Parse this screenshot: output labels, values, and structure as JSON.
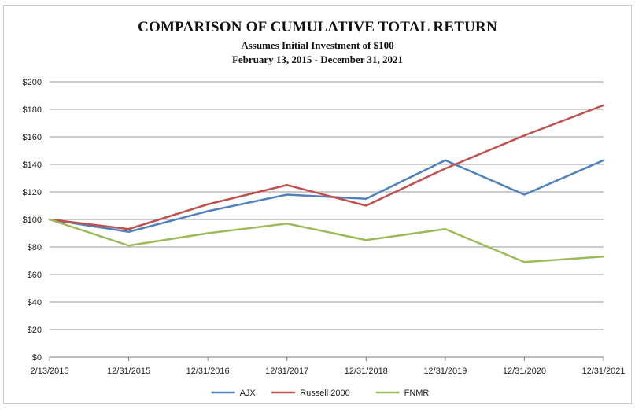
{
  "chart_data": {
    "type": "line",
    "title": "COMPARISON OF CUMULATIVE TOTAL RETURN",
    "subtitle": "Assumes Initial Investment of $100",
    "subtitle2": "February 13, 2015 - December 31, 2021",
    "categories": [
      "2/13/2015",
      "12/31/2015",
      "12/31/2016",
      "12/31/2017",
      "12/31/2018",
      "12/31/2019",
      "12/31/2020",
      "12/31/2021"
    ],
    "y_ticks": [
      "$0",
      "$20",
      "$40",
      "$60",
      "$80",
      "$100",
      "$120",
      "$140",
      "$160",
      "$180",
      "$200"
    ],
    "ylim": [
      0,
      200
    ],
    "grid": true,
    "legend_position": "bottom",
    "series": [
      {
        "name": "AJX",
        "color": "#4f81bd",
        "values": [
          100,
          91,
          106,
          118,
          115,
          143,
          118,
          143
        ]
      },
      {
        "name": "Russell 2000",
        "color": "#c0504d",
        "values": [
          100,
          93,
          111,
          125,
          110,
          137,
          161,
          183
        ]
      },
      {
        "name": "FNMR",
        "color": "#9bbb59",
        "values": [
          100,
          81,
          90,
          97,
          85,
          93,
          69,
          73
        ]
      }
    ]
  }
}
